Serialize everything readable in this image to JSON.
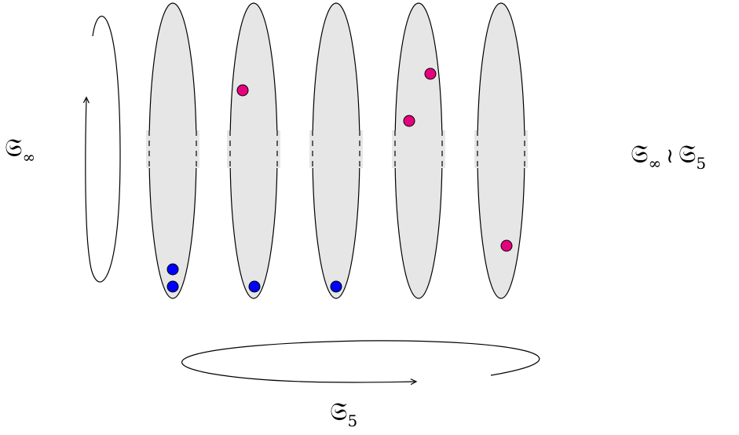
{
  "labels": {
    "left": {
      "symbol": "𝔖",
      "subscript": "∞"
    },
    "right": {
      "symbol1": "𝔖",
      "subscript1": "∞",
      "operator": "≀",
      "symbol2": "𝔖",
      "subscript2": "5"
    },
    "bottom": {
      "symbol": "𝔖",
      "subscript": "5"
    }
  },
  "colors": {
    "ellipse_fill": "#e6e6e6",
    "stroke": "#000000",
    "blue_dot": "#0000ff",
    "pink_dot": "#e6007e"
  }
}
